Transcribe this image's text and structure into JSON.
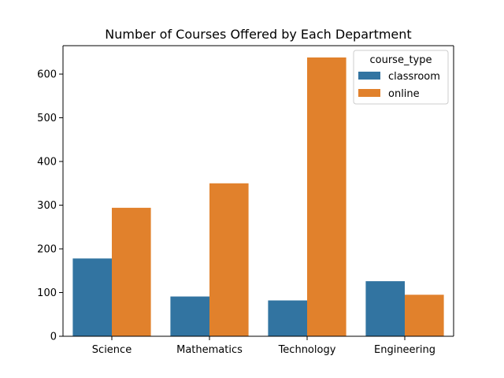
{
  "chart_data": {
    "type": "bar",
    "title": "Number of Courses Offered by Each Department",
    "xlabel": "",
    "ylabel": "",
    "categories": [
      "Science",
      "Mathematics",
      "Technology",
      "Engineering"
    ],
    "series": [
      {
        "name": "classroom",
        "color": "#3274a1",
        "values": [
          178,
          91,
          82,
          126
        ]
      },
      {
        "name": "online",
        "color": "#e1812c",
        "values": [
          294,
          350,
          638,
          95
        ]
      }
    ],
    "ylim": [
      0,
      665
    ],
    "yticks": [
      0,
      100,
      200,
      300,
      400,
      500,
      600
    ],
    "grid": false,
    "legend": {
      "title": "course_type",
      "position": "top-right"
    }
  }
}
